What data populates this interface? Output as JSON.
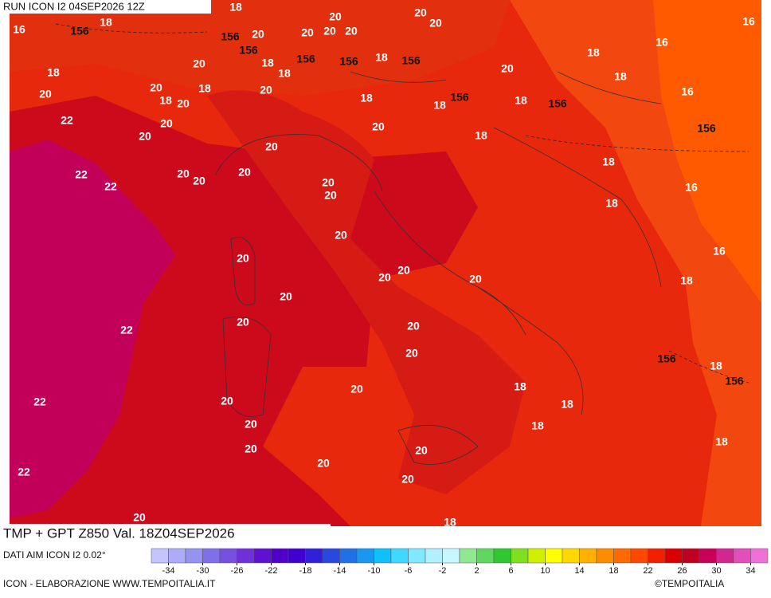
{
  "header": {
    "run": "RUN ICON I2 04SEP2026 12Z"
  },
  "title": "TMP + GPT Z850 Val. 18Z04SEP2026",
  "footer": {
    "source": "DATI AIM ICON I2 0.02°",
    "credit": "ICON - ELABORAZIONE WWW.TEMPOITALIA.IT",
    "copyright": "©TEMPOITALIA"
  },
  "colorbar": {
    "ticks": [
      -34,
      -30,
      -26,
      -22,
      -18,
      -14,
      -10,
      -6,
      -2,
      2,
      6,
      10,
      14,
      18,
      22,
      26,
      30,
      34
    ],
    "colors": [
      "#c4c4ff",
      "#acacf8",
      "#9494f0",
      "#8070e8",
      "#7850e0",
      "#7030d8",
      "#6010d0",
      "#5000c8",
      "#4000d0",
      "#3020d8",
      "#2848e0",
      "#2070e8",
      "#1898f0",
      "#10c0f8",
      "#40d8ff",
      "#80e8ff",
      "#b0f0ff",
      "#c8f8ff",
      "#90e890",
      "#60d860",
      "#30c830",
      "#80e020",
      "#d0f000",
      "#ffff00",
      "#ffd800",
      "#ffb000",
      "#ff8c00",
      "#ff6a00",
      "#ff4800",
      "#f02000",
      "#d80000",
      "#c00020",
      "#c8005a",
      "#d02890",
      "#e050b8",
      "#f070d8"
    ]
  },
  "contour_labels": [
    "16",
    "156",
    "18",
    "18",
    "20",
    "20",
    "20",
    "156",
    "20",
    "20",
    "20",
    "20",
    "156",
    "20",
    "18",
    "156",
    "18",
    "156",
    "18",
    "156",
    "20",
    "18",
    "16",
    "16",
    "18",
    "20",
    "18",
    "20",
    "20",
    "18",
    "20",
    "18",
    "18",
    "156",
    "18",
    "156",
    "18",
    "16",
    "22",
    "20",
    "20",
    "20",
    "18",
    "156",
    "20",
    "22",
    "20",
    "20",
    "20",
    "22",
    "20",
    "20",
    "18",
    "16",
    "18",
    "20",
    "20",
    "20",
    "20",
    "20",
    "16",
    "18",
    "20",
    "20",
    "22",
    "20",
    "20",
    "156",
    "18",
    "156",
    "20",
    "18",
    "22",
    "20",
    "18",
    "20",
    "18",
    "18",
    "20",
    "20",
    "20",
    "22",
    "20",
    "18",
    "20"
  ]
}
